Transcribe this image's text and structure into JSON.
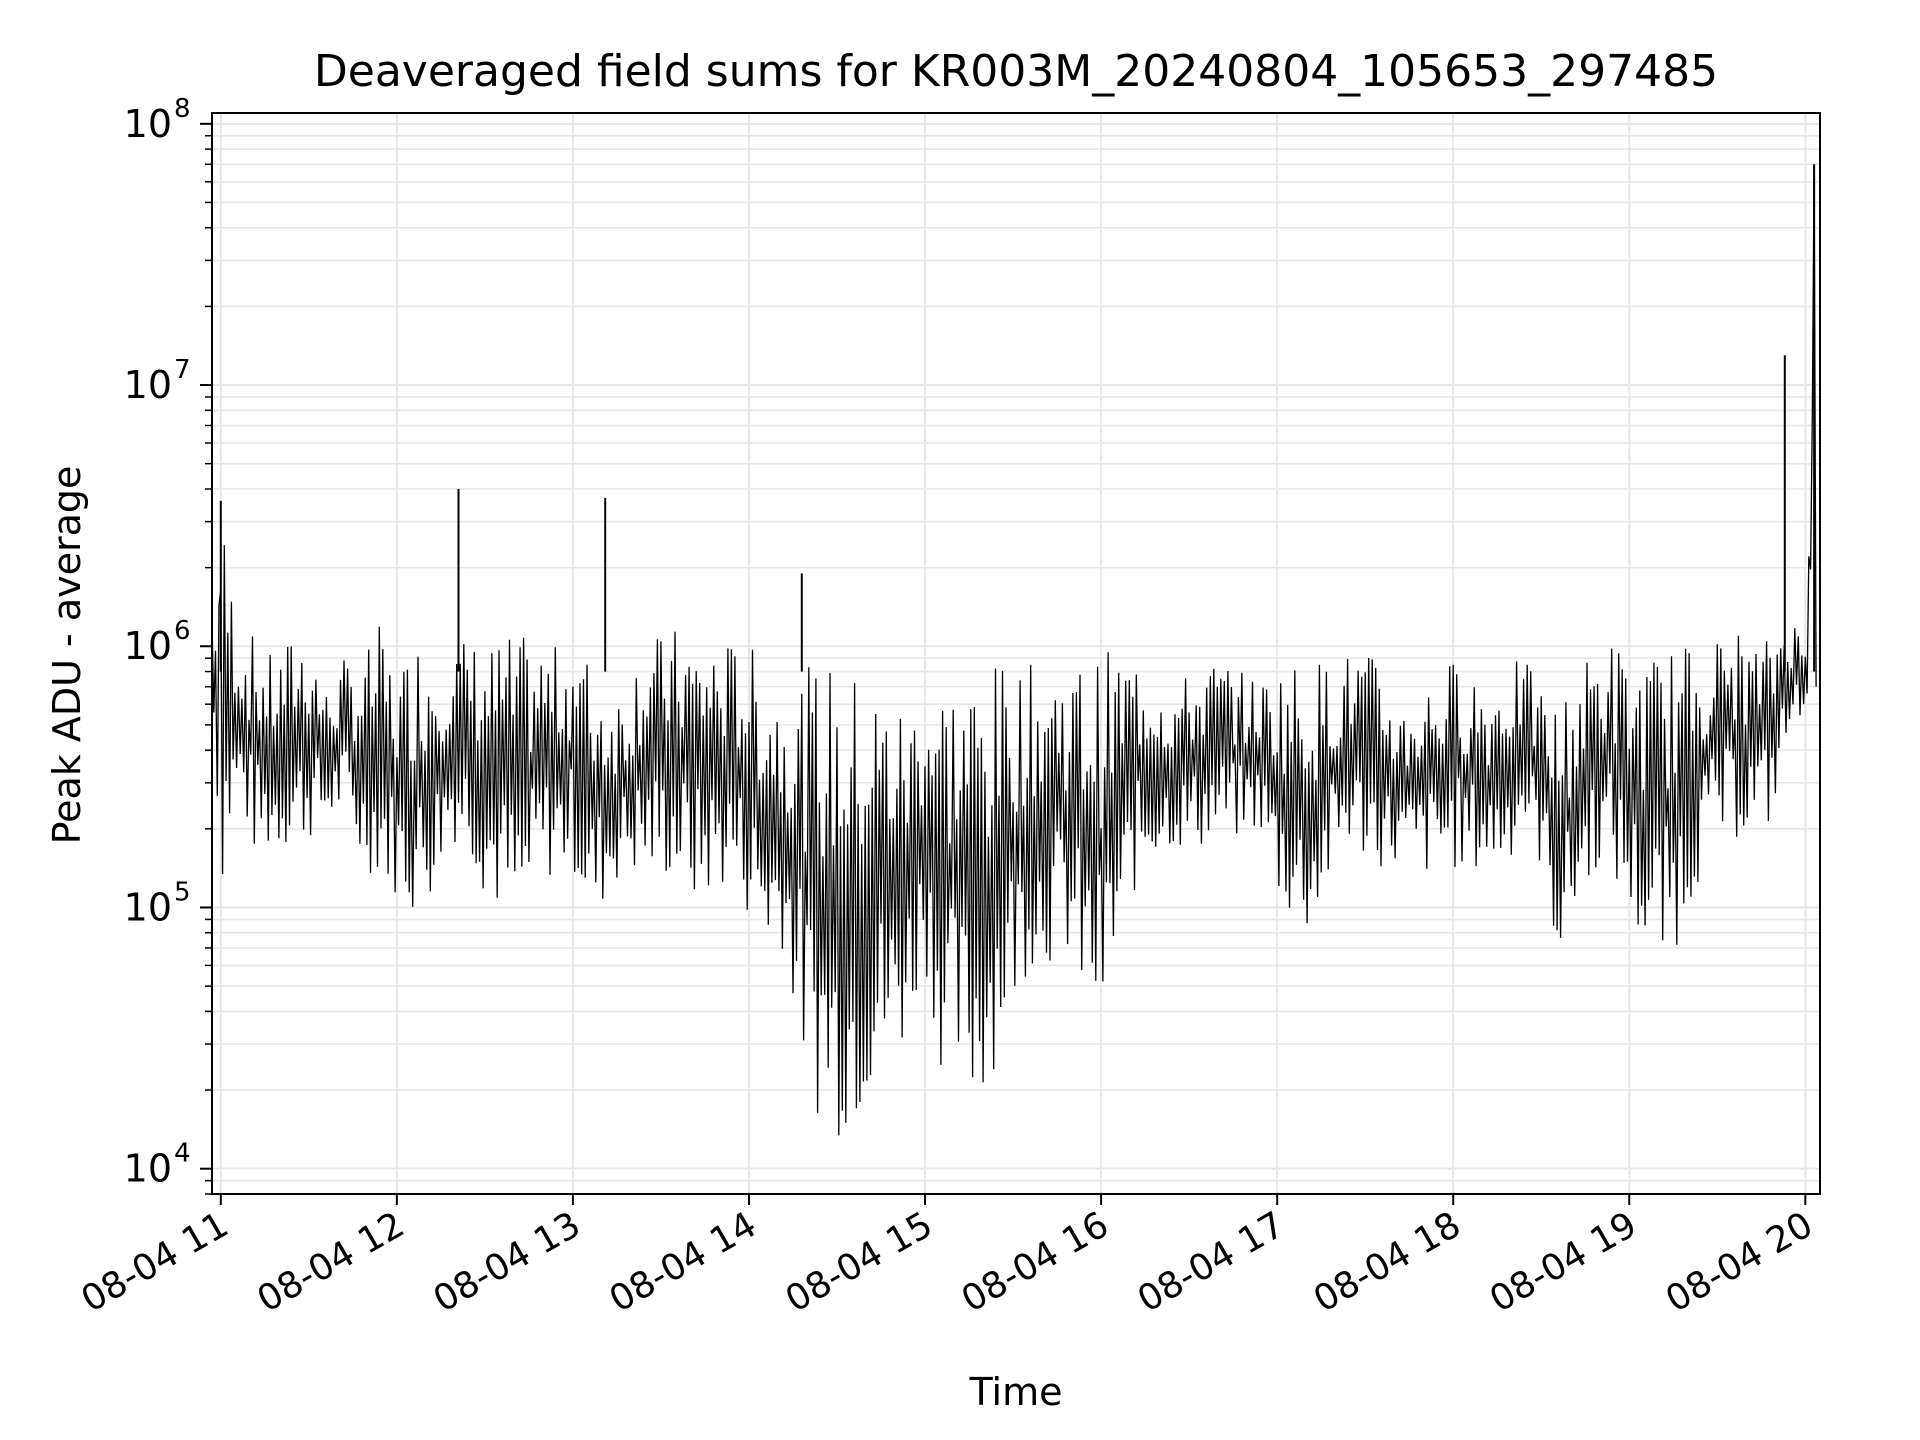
{
  "chart_data": {
    "type": "line",
    "title": "Deaveraged field sums for KR003M_20240804_105653_297485",
    "xlabel": "Time",
    "ylabel": "Peak ADU - average",
    "y_scale": "log",
    "ylim": [
      8000,
      110000000
    ],
    "y_ticks": [
      {
        "value": 10000,
        "base": "10",
        "exp": "4"
      },
      {
        "value": 100000,
        "base": "10",
        "exp": "5"
      },
      {
        "value": 1000000,
        "base": "10",
        "exp": "6"
      },
      {
        "value": 10000000,
        "base": "10",
        "exp": "7"
      },
      {
        "value": 100000000,
        "base": "10",
        "exp": "8"
      }
    ],
    "x_ticks": [
      "08-04 11",
      "08-04 12",
      "08-04 13",
      "08-04 14",
      "08-04 15",
      "08-04 16",
      "08-04 17",
      "08-04 18",
      "08-04 19",
      "08-04 20"
    ],
    "x_range": [
      "08-04 10:57",
      "08-04 20:05"
    ],
    "grid": true,
    "line_color": "#000000",
    "grid_color": "#e6e6e6",
    "series": [
      {
        "x": [
          "08-04 10:57",
          "08-04 11:00",
          "08-04 11:06",
          "08-04 11:12",
          "08-04 11:18",
          "08-04 11:24",
          "08-04 11:30",
          "08-04 11:36",
          "08-04 11:42",
          "08-04 11:48",
          "08-04 11:54",
          "08-04 12:00",
          "08-04 12:06",
          "08-04 12:12",
          "08-04 12:18",
          "08-04 12:24",
          "08-04 12:30",
          "08-04 12:36",
          "08-04 12:42",
          "08-04 12:48",
          "08-04 12:54",
          "08-04 13:00",
          "08-04 13:06",
          "08-04 13:12",
          "08-04 13:18",
          "08-04 13:24",
          "08-04 13:30",
          "08-04 13:36",
          "08-04 13:42",
          "08-04 13:48",
          "08-04 13:54",
          "08-04 14:00",
          "08-04 14:06",
          "08-04 14:12",
          "08-04 14:18",
          "08-04 14:24",
          "08-04 14:30",
          "08-04 14:36",
          "08-04 14:42",
          "08-04 14:48",
          "08-04 14:54",
          "08-04 15:00",
          "08-04 15:06",
          "08-04 15:12",
          "08-04 15:18",
          "08-04 15:24",
          "08-04 15:30",
          "08-04 15:36",
          "08-04 15:42",
          "08-04 15:48",
          "08-04 15:54",
          "08-04 16:00",
          "08-04 16:06",
          "08-04 16:12",
          "08-04 16:18",
          "08-04 16:24",
          "08-04 16:30",
          "08-04 16:36",
          "08-04 16:42",
          "08-04 16:48",
          "08-04 16:54",
          "08-04 17:00",
          "08-04 17:06",
          "08-04 17:12",
          "08-04 17:18",
          "08-04 17:24",
          "08-04 17:30",
          "08-04 17:36",
          "08-04 17:42",
          "08-04 17:48",
          "08-04 17:54",
          "08-04 18:00",
          "08-04 18:06",
          "08-04 18:12",
          "08-04 18:18",
          "08-04 18:24",
          "08-04 18:30",
          "08-04 18:36",
          "08-04 18:42",
          "08-04 18:48",
          "08-04 18:54",
          "08-04 19:00",
          "08-04 19:06",
          "08-04 19:12",
          "08-04 19:18",
          "08-04 19:24",
          "08-04 19:30",
          "08-04 19:36",
          "08-04 19:42",
          "08-04 19:48",
          "08-04 19:54",
          "08-04 20:00",
          "08-04 20:03"
        ],
        "lo": [
          500000,
          110000,
          250000,
          150000,
          160000,
          170000,
          180000,
          200000,
          230000,
          140000,
          130000,
          110000,
          90000,
          110000,
          180000,
          170000,
          110000,
          90000,
          70000,
          120000,
          130000,
          140000,
          80000,
          110000,
          140000,
          120000,
          130000,
          120000,
          100000,
          110000,
          120000,
          90000,
          65000,
          70000,
          25000,
          15000,
          13000,
          14000,
          20000,
          22000,
          30000,
          60000,
          22000,
          18000,
          16000,
          25000,
          40000,
          60000,
          60000,
          65000,
          40000,
          30000,
          60000,
          120000,
          150000,
          170000,
          160000,
          170000,
          180000,
          180000,
          200000,
          110000,
          80000,
          75000,
          120000,
          170000,
          150000,
          140000,
          140000,
          130000,
          130000,
          140000,
          130000,
          140000,
          140000,
          200000,
          140000,
          60000,
          90000,
          140000,
          130000,
          90000,
          60000,
          55000,
          80000,
          130000,
          170000,
          180000,
          200000,
          200000,
          400000,
          600000,
          700000
        ],
        "hi": [
          1600000,
          3600000,
          1200000,
          1100000,
          900000,
          1100000,
          1200000,
          700000,
          900000,
          900000,
          1200000,
          800000,
          1100000,
          1100000,
          1000000,
          1100000,
          1000000,
          1100000,
          1100000,
          1050000,
          1000000,
          1100000,
          900000,
          700000,
          700000,
          1200000,
          1100000,
          1200000,
          1100000,
          1100000,
          1050000,
          1050000,
          800000,
          700000,
          800000,
          900000,
          850000,
          800000,
          750000,
          700000,
          600000,
          800000,
          800000,
          800000,
          850000,
          850000,
          900000,
          850000,
          900000,
          900000,
          900000,
          950000,
          1000000,
          950000,
          900000,
          700000,
          800000,
          900000,
          900000,
          800000,
          750000,
          850000,
          900000,
          900000,
          900000,
          950000,
          1000000,
          800000,
          600000,
          700000,
          800000,
          900000,
          900000,
          700000,
          900000,
          900000,
          700000,
          600000,
          800000,
          1000000,
          1100000,
          900000,
          900000,
          1000000,
          1000000,
          1100000,
          1100000,
          1200000,
          1000000,
          1100000,
          1500000,
          1000000,
          70000000
        ]
      }
    ],
    "spikes": [
      {
        "x": "08-04 11:00",
        "value": 3600000
      },
      {
        "x": "08-04 12:21",
        "value": 4000000
      },
      {
        "x": "08-04 13:11",
        "value": 3700000
      },
      {
        "x": "08-04 14:18",
        "value": 1900000
      },
      {
        "x": "08-04 19:53",
        "value": 13000000
      },
      {
        "x": "08-04 20:03",
        "value": 70000000
      }
    ]
  }
}
